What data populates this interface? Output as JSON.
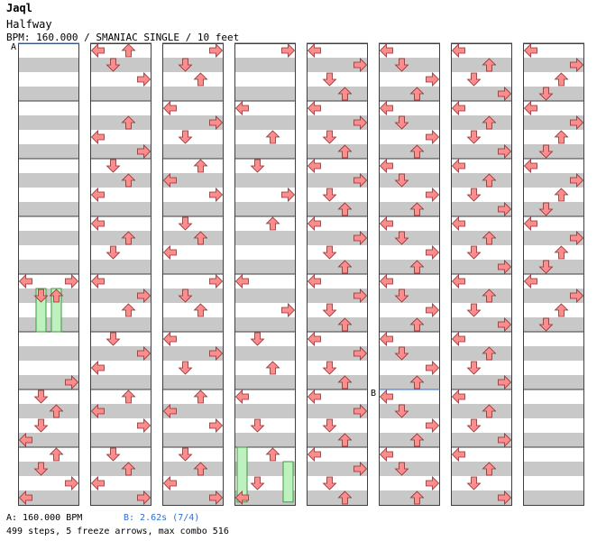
{
  "header": {
    "title": "Jaql",
    "subtitle": "Halfway",
    "info": "BPM: 160.000 / SMANIAC SINGLE / 10 feet"
  },
  "markers": {
    "a": "A",
    "b": "B"
  },
  "footer": {
    "bpm_a": "A: 160.000 BPM",
    "bpm_b": "B: 2.62s (7/4)",
    "stats": "499 steps, 5 freeze arrows, max combo 516"
  },
  "colors": {
    "red_arrow": "#ff8c8c",
    "blue_arrow": "#5aa8f0",
    "pink_arrow": "#f7a6f7",
    "freeze": "#bff0bf",
    "stripe": "#c8c8c8",
    "bpm_change": "#2c6fd6"
  },
  "chart_data": {
    "type": "step-chart",
    "song": "Halfway",
    "artist": "Jaql",
    "difficulty": "SMANIAC",
    "style": "SINGLE",
    "feet": 10,
    "bpm": 160,
    "lanes": [
      "left",
      "down",
      "up",
      "right"
    ],
    "measures_per_column": 8,
    "columns": 8,
    "steps": 499,
    "freeze_arrows": 5,
    "max_combo": 516,
    "stops": [
      {
        "label": "B",
        "duration_s": 2.62,
        "beat": "7/4"
      }
    ],
    "notes": [
      [
        [
          0,
          4,
          0
        ],
        [
          0,
          4,
          3
        ],
        [
          0,
          4.25,
          1
        ],
        [
          0,
          4.25,
          2
        ],
        [
          0,
          5.75,
          3
        ],
        [
          0,
          6,
          1
        ],
        [
          0,
          6.25,
          2
        ],
        [
          0,
          6.5,
          1
        ],
        [
          0,
          6.75,
          0
        ],
        [
          0,
          7,
          2
        ],
        [
          0,
          7.25,
          1
        ],
        [
          0,
          7.5,
          3
        ],
        [
          0,
          7.75,
          0
        ]
      ],
      [
        [
          1,
          0,
          0
        ],
        [
          1,
          0,
          2
        ],
        [
          1,
          0.25,
          1
        ],
        [
          1,
          0.5,
          3
        ],
        [
          1,
          1.25,
          2
        ],
        [
          1,
          1.5,
          0
        ],
        [
          1,
          1.75,
          3
        ],
        [
          1,
          2,
          1
        ],
        [
          1,
          2.25,
          2
        ],
        [
          1,
          2.5,
          0
        ],
        [
          1,
          3,
          0
        ],
        [
          1,
          3.25,
          2
        ],
        [
          1,
          3.5,
          1
        ],
        [
          1,
          4,
          0
        ],
        [
          1,
          4.25,
          3
        ],
        [
          1,
          4.5,
          2
        ],
        [
          1,
          5,
          1
        ],
        [
          1,
          5.25,
          3
        ],
        [
          1,
          5.5,
          0
        ],
        [
          1,
          6,
          2
        ],
        [
          1,
          6.25,
          0
        ],
        [
          1,
          6.5,
          3
        ],
        [
          1,
          7,
          1
        ],
        [
          1,
          7.25,
          2
        ],
        [
          1,
          7.5,
          0
        ],
        [
          1,
          7.75,
          3
        ]
      ],
      [
        [
          2,
          0,
          3
        ],
        [
          2,
          0.25,
          1
        ],
        [
          2,
          0.5,
          2
        ],
        [
          2,
          1,
          0
        ],
        [
          2,
          1.25,
          3
        ],
        [
          2,
          1.5,
          1
        ],
        [
          2,
          2,
          2
        ],
        [
          2,
          2.25,
          0
        ],
        [
          2,
          2.5,
          3
        ],
        [
          2,
          3,
          1
        ],
        [
          2,
          3.25,
          2
        ],
        [
          2,
          3.5,
          0
        ],
        [
          2,
          4,
          3
        ],
        [
          2,
          4.25,
          1
        ],
        [
          2,
          4.5,
          2
        ],
        [
          2,
          5,
          0
        ],
        [
          2,
          5.25,
          3
        ],
        [
          2,
          5.5,
          1
        ],
        [
          2,
          6,
          2
        ],
        [
          2,
          6.25,
          0
        ],
        [
          2,
          6.5,
          3
        ],
        [
          2,
          7,
          1
        ],
        [
          2,
          7.25,
          2
        ],
        [
          2,
          7.5,
          0
        ],
        [
          2,
          7.75,
          3
        ]
      ],
      [
        [
          3,
          0,
          3
        ],
        [
          3,
          1,
          0
        ],
        [
          3,
          1.5,
          2
        ],
        [
          3,
          2,
          1
        ],
        [
          3,
          2.5,
          3
        ],
        [
          3,
          3,
          2
        ],
        [
          3,
          4,
          0
        ],
        [
          3,
          4.5,
          3
        ],
        [
          3,
          5,
          1
        ],
        [
          3,
          5.5,
          2
        ],
        [
          3,
          6,
          0
        ],
        [
          3,
          6.5,
          1
        ],
        [
          3,
          7,
          2
        ],
        [
          3,
          7.5,
          1
        ],
        [
          3,
          7.75,
          0
        ]
      ],
      [
        [
          4,
          0,
          0
        ],
        [
          4,
          0.25,
          3
        ],
        [
          4,
          0.5,
          1
        ],
        [
          4,
          0.75,
          2
        ],
        [
          4,
          1,
          0
        ],
        [
          4,
          1.25,
          3
        ],
        [
          4,
          1.5,
          1
        ],
        [
          4,
          1.75,
          2
        ],
        [
          4,
          2,
          0
        ],
        [
          4,
          2.25,
          3
        ],
        [
          4,
          2.5,
          1
        ],
        [
          4,
          2.75,
          2
        ],
        [
          4,
          3,
          0
        ],
        [
          4,
          3.25,
          3
        ],
        [
          4,
          3.5,
          1
        ],
        [
          4,
          3.75,
          2
        ],
        [
          4,
          4,
          0
        ],
        [
          4,
          4.25,
          3
        ],
        [
          4,
          4.5,
          1
        ],
        [
          4,
          4.75,
          2
        ],
        [
          4,
          5,
          0
        ],
        [
          4,
          5.25,
          3
        ],
        [
          4,
          5.5,
          1
        ],
        [
          4,
          5.75,
          2
        ],
        [
          4,
          6,
          0
        ],
        [
          4,
          6.25,
          3
        ],
        [
          4,
          6.5,
          1
        ],
        [
          4,
          6.75,
          2
        ],
        [
          4,
          7,
          0
        ],
        [
          4,
          7.25,
          3
        ],
        [
          4,
          7.5,
          1
        ],
        [
          4,
          7.75,
          2
        ]
      ],
      [
        [
          5,
          0,
          0
        ],
        [
          5,
          0.25,
          1
        ],
        [
          5,
          0.5,
          3
        ],
        [
          5,
          0.75,
          2
        ],
        [
          5,
          1,
          0
        ],
        [
          5,
          1.25,
          1
        ],
        [
          5,
          1.5,
          3
        ],
        [
          5,
          1.75,
          2
        ],
        [
          5,
          2,
          0
        ],
        [
          5,
          2.25,
          1
        ],
        [
          5,
          2.5,
          3
        ],
        [
          5,
          2.75,
          2
        ],
        [
          5,
          3,
          0
        ],
        [
          5,
          3.25,
          1
        ],
        [
          5,
          3.5,
          3
        ],
        [
          5,
          3.75,
          2
        ],
        [
          5,
          4,
          0
        ],
        [
          5,
          4.25,
          1
        ],
        [
          5,
          4.5,
          3
        ],
        [
          5,
          4.75,
          2
        ],
        [
          5,
          5,
          0
        ],
        [
          5,
          5.25,
          1
        ],
        [
          5,
          5.5,
          3
        ],
        [
          5,
          5.75,
          2
        ],
        [
          5,
          6,
          0
        ],
        [
          5,
          6.25,
          1
        ],
        [
          5,
          6.5,
          3
        ],
        [
          5,
          6.75,
          2
        ],
        [
          5,
          7,
          0
        ],
        [
          5,
          7.25,
          1
        ],
        [
          5,
          7.5,
          3
        ],
        [
          5,
          7.75,
          2
        ]
      ],
      [
        [
          6,
          0,
          0
        ],
        [
          6,
          0.25,
          2
        ],
        [
          6,
          0.5,
          1
        ],
        [
          6,
          0.75,
          3
        ],
        [
          6,
          1,
          0
        ],
        [
          6,
          1.25,
          2
        ],
        [
          6,
          1.5,
          1
        ],
        [
          6,
          1.75,
          3
        ],
        [
          6,
          2,
          0
        ],
        [
          6,
          2.25,
          2
        ],
        [
          6,
          2.5,
          1
        ],
        [
          6,
          2.75,
          3
        ],
        [
          6,
          3,
          0
        ],
        [
          6,
          3.25,
          2
        ],
        [
          6,
          3.5,
          1
        ],
        [
          6,
          3.75,
          3
        ],
        [
          6,
          4,
          0
        ],
        [
          6,
          4.25,
          2
        ],
        [
          6,
          4.5,
          1
        ],
        [
          6,
          4.75,
          3
        ],
        [
          6,
          5,
          0
        ],
        [
          6,
          5.25,
          2
        ],
        [
          6,
          5.5,
          1
        ],
        [
          6,
          5.75,
          3
        ],
        [
          6,
          6,
          0
        ],
        [
          6,
          6.25,
          2
        ],
        [
          6,
          6.5,
          1
        ],
        [
          6,
          6.75,
          3
        ],
        [
          6,
          7,
          0
        ],
        [
          6,
          7.25,
          2
        ],
        [
          6,
          7.5,
          1
        ],
        [
          6,
          7.75,
          3
        ]
      ],
      [
        [
          7,
          0,
          0
        ],
        [
          7,
          0.25,
          3
        ],
        [
          7,
          0.5,
          2
        ],
        [
          7,
          0.75,
          1
        ],
        [
          7,
          1,
          0
        ],
        [
          7,
          1.25,
          3
        ],
        [
          7,
          1.5,
          2
        ],
        [
          7,
          1.75,
          1
        ],
        [
          7,
          2,
          0
        ],
        [
          7,
          2.25,
          3
        ],
        [
          7,
          2.5,
          2
        ],
        [
          7,
          2.75,
          1
        ],
        [
          7,
          3,
          0
        ],
        [
          7,
          3.25,
          3
        ],
        [
          7,
          3.5,
          2
        ],
        [
          7,
          3.75,
          1
        ],
        [
          7,
          4,
          0
        ],
        [
          7,
          4.25,
          3
        ],
        [
          7,
          4.5,
          2
        ],
        [
          7,
          4.75,
          1
        ]
      ]
    ],
    "freezes": [
      {
        "column": 0,
        "lane": 1,
        "start_measure": 4.25,
        "end_measure": 5
      },
      {
        "column": 0,
        "lane": 2,
        "start_measure": 4.25,
        "end_measure": 5
      },
      {
        "column": 3,
        "lane": 0,
        "start_measure": 7,
        "end_measure": 7.95
      },
      {
        "column": 3,
        "lane": 3,
        "start_measure": 7.25,
        "end_measure": 7.95
      }
    ]
  }
}
